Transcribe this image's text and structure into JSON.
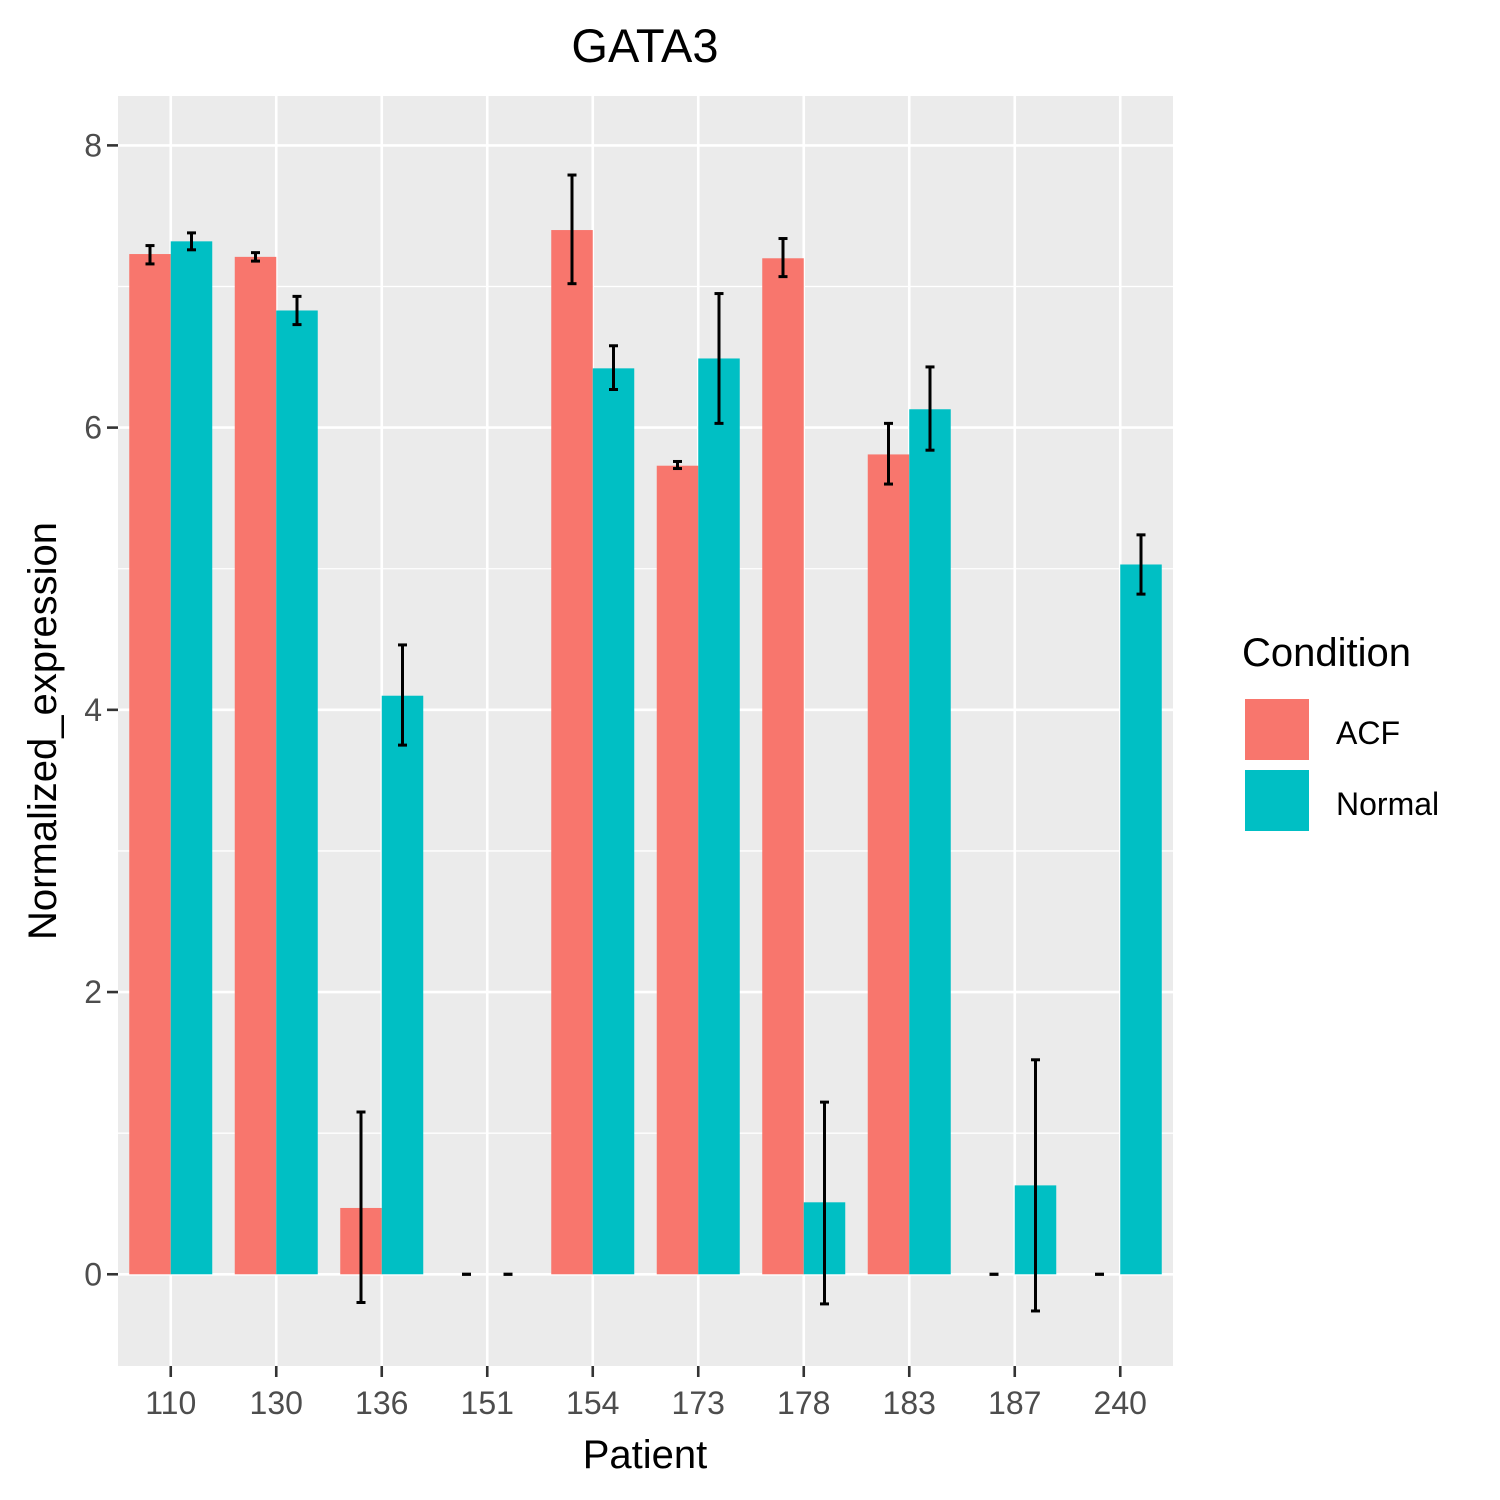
{
  "chart_data": {
    "type": "bar",
    "title": "GATA3",
    "xlabel": "Patient",
    "ylabel": "Normalized_expression",
    "categories": [
      "110",
      "130",
      "136",
      "151",
      "154",
      "173",
      "178",
      "183",
      "187",
      "240"
    ],
    "series": [
      {
        "name": "ACF",
        "color": "#F8766D",
        "values": [
          7.23,
          7.21,
          0.47,
          0,
          7.4,
          5.73,
          7.2,
          5.81,
          0,
          0
        ],
        "err_low": [
          7.16,
          7.18,
          -0.2,
          0,
          7.02,
          5.71,
          7.07,
          5.6,
          0,
          0
        ],
        "err_high": [
          7.29,
          7.24,
          1.15,
          0,
          7.79,
          5.76,
          7.34,
          6.03,
          0,
          0
        ]
      },
      {
        "name": "Normal",
        "color": "#00BFC4",
        "values": [
          7.32,
          6.83,
          4.1,
          0,
          6.42,
          6.49,
          0.51,
          6.13,
          0.63,
          5.03
        ],
        "err_low": [
          7.26,
          6.73,
          3.75,
          0,
          6.27,
          6.03,
          -0.21,
          5.84,
          -0.26,
          4.82
        ],
        "err_high": [
          7.38,
          6.93,
          4.46,
          0,
          6.58,
          6.95,
          1.22,
          6.43,
          1.52,
          5.24
        ]
      }
    ],
    "ylim": [
      -0.65,
      8.35
    ],
    "yticks": [
      0,
      2,
      4,
      6,
      8
    ],
    "grid": true,
    "legend": {
      "title": "Condition",
      "position": "right",
      "entries": [
        "ACF",
        "Normal"
      ]
    }
  }
}
